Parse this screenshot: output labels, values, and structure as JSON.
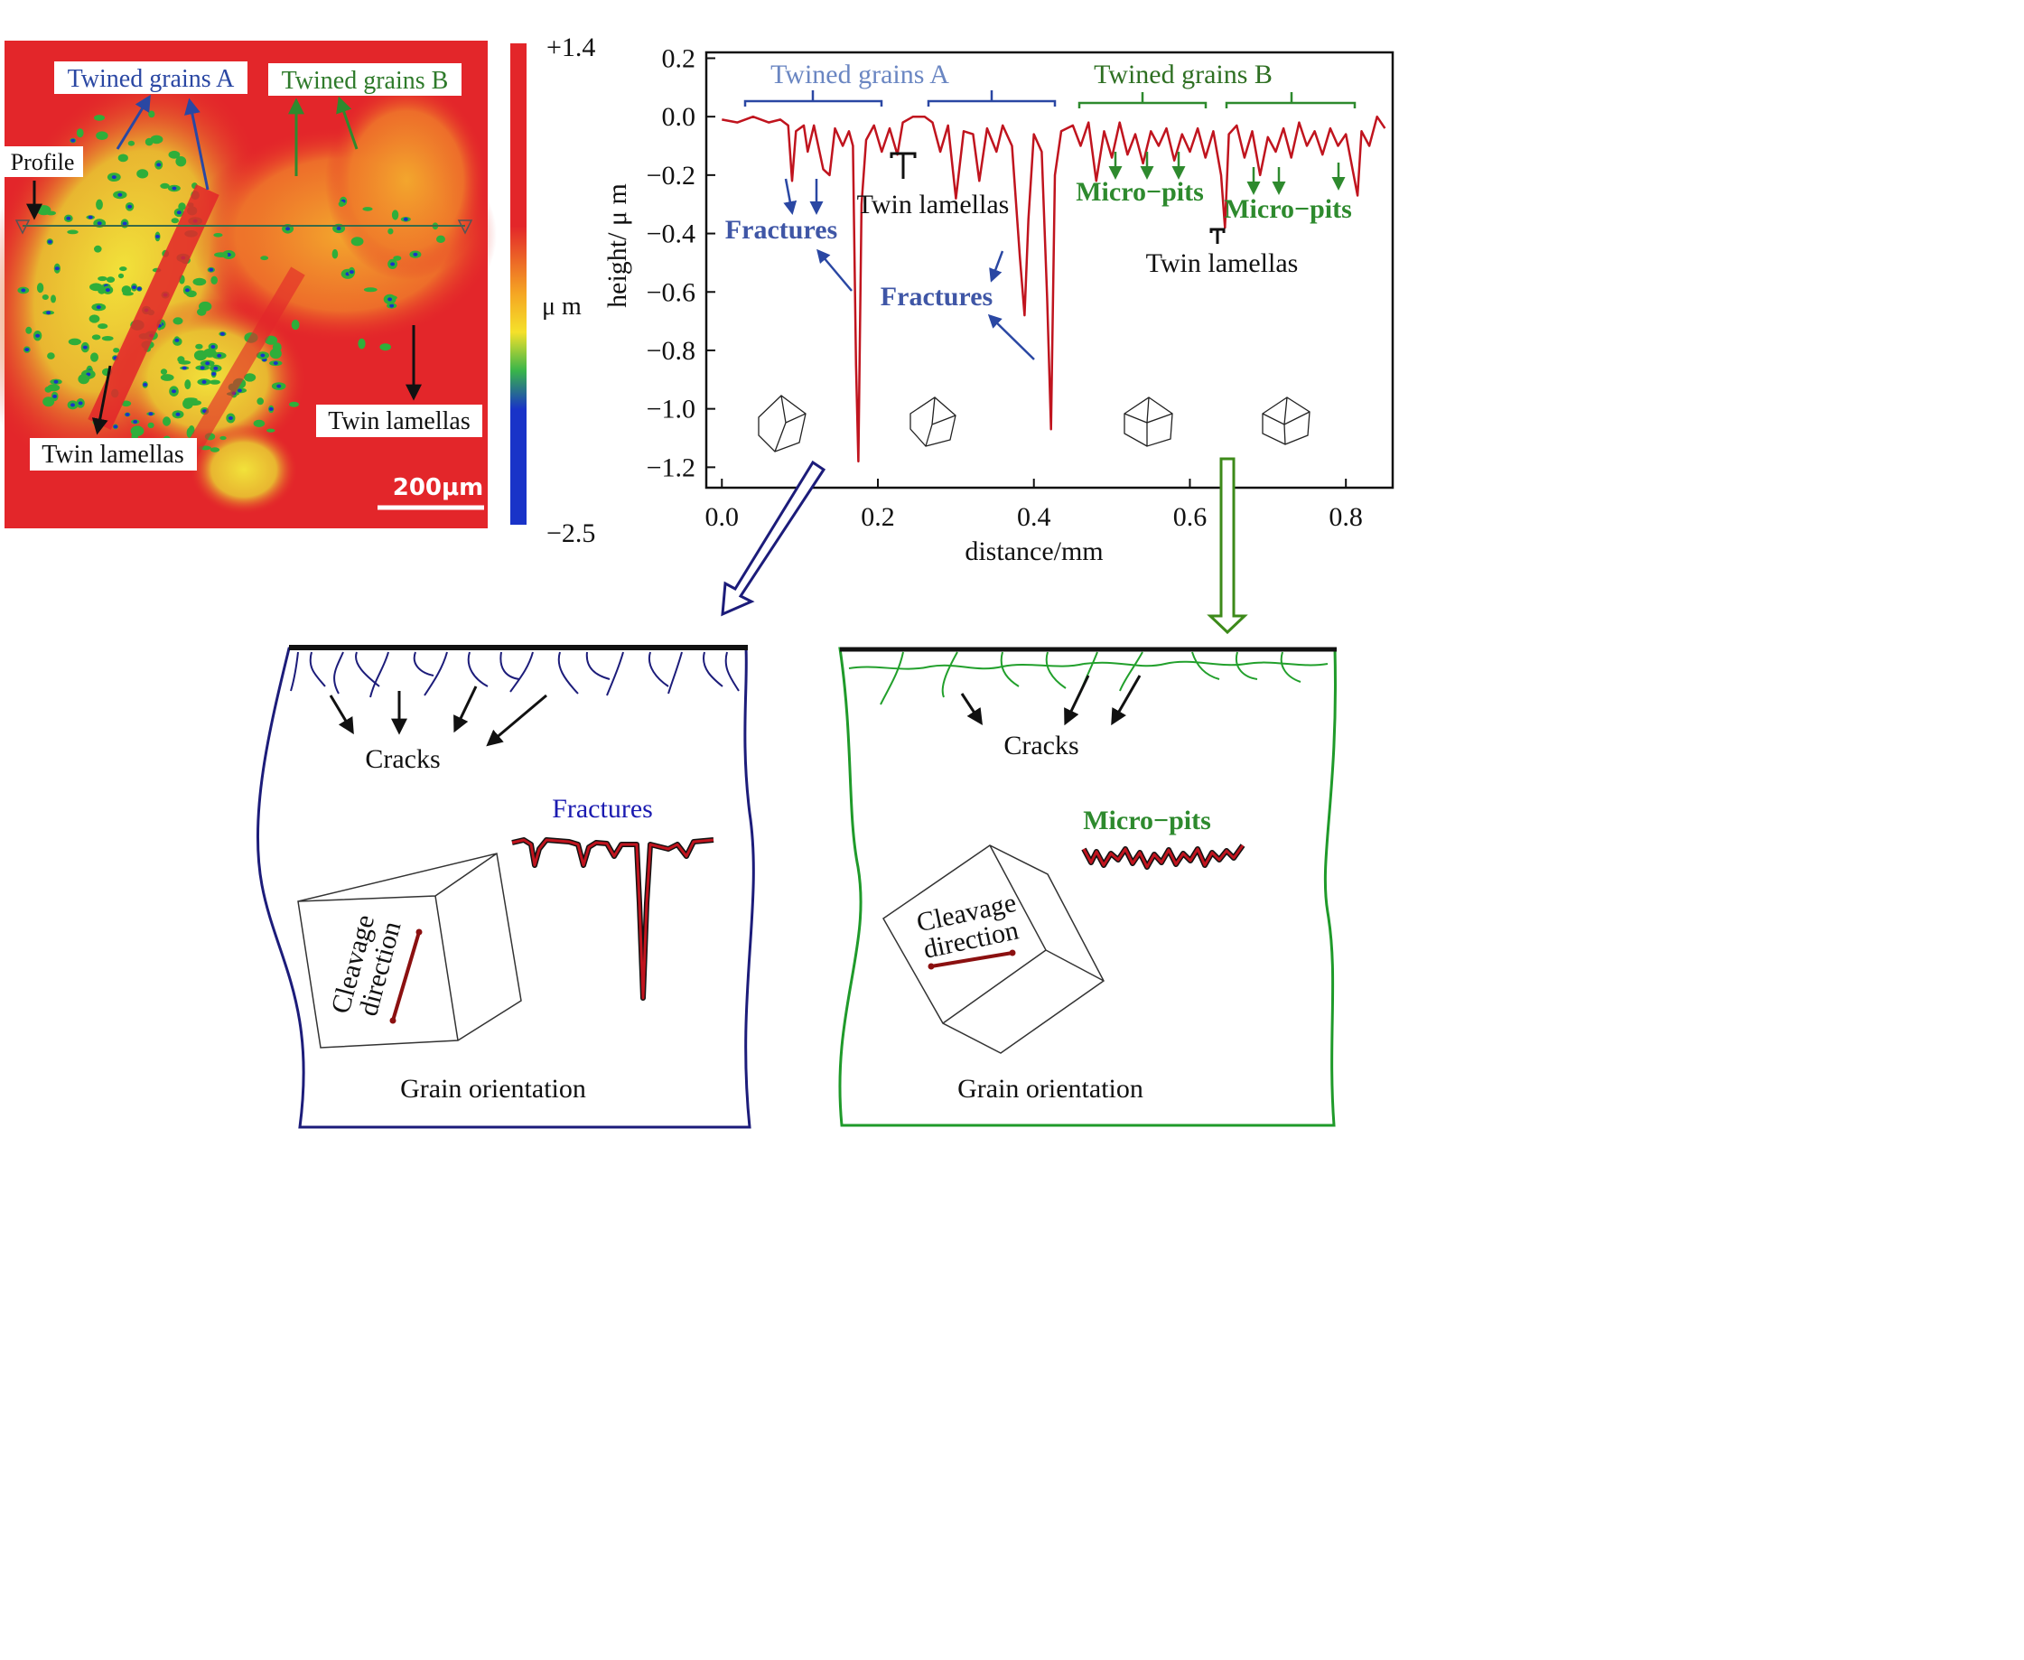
{
  "height_map": {
    "scale_top": "+1.4",
    "scale_bottom": "−2.5",
    "scale_unit": "μ m",
    "scale_bar": "200μm",
    "labels": {
      "twined_a": "Twined grains A",
      "twined_b": "Twined grains B",
      "profile": "Profile",
      "twin_left": "Twin lamellas",
      "twin_right": "Twin lamellas"
    },
    "colors": {
      "high": "#e3262a",
      "mid": "#f5d12a",
      "low": "#1933c8"
    }
  },
  "chart_data": {
    "type": "line",
    "xlabel": "distance/mm",
    "ylabel": "height/ μ m",
    "xlim": [
      -0.02,
      0.86
    ],
    "ylim": [
      -1.27,
      0.22
    ],
    "xticks": [
      "0.0",
      "0.2",
      "0.4",
      "0.6",
      "0.8"
    ],
    "xtick_values": [
      0.0,
      0.2,
      0.4,
      0.6,
      0.8
    ],
    "yticks": [
      "0.2",
      "0.0",
      "−0.2",
      "−0.4",
      "−0.6",
      "−0.8",
      "−1.0",
      "−1.2"
    ],
    "ytick_values": [
      0.2,
      0.0,
      -0.2,
      -0.4,
      -0.6,
      -0.8,
      -1.0,
      -1.2
    ],
    "line_color": "#c0141e",
    "profile": [
      [
        0.0,
        -0.01
      ],
      [
        0.02,
        -0.02
      ],
      [
        0.04,
        0.0
      ],
      [
        0.06,
        -0.02
      ],
      [
        0.075,
        -0.01
      ],
      [
        0.085,
        -0.03
      ],
      [
        0.09,
        -0.22
      ],
      [
        0.095,
        -0.05
      ],
      [
        0.105,
        -0.03
      ],
      [
        0.11,
        -0.12
      ],
      [
        0.118,
        -0.03
      ],
      [
        0.13,
        -0.18
      ],
      [
        0.138,
        -0.2
      ],
      [
        0.145,
        -0.04
      ],
      [
        0.155,
        -0.1
      ],
      [
        0.163,
        -0.05
      ],
      [
        0.168,
        -0.1
      ],
      [
        0.172,
        -0.85
      ],
      [
        0.175,
        -1.18
      ],
      [
        0.179,
        -0.3
      ],
      [
        0.185,
        -0.08
      ],
      [
        0.195,
        -0.03
      ],
      [
        0.205,
        -0.12
      ],
      [
        0.215,
        -0.04
      ],
      [
        0.225,
        -0.13
      ],
      [
        0.232,
        -0.02
      ],
      [
        0.245,
        0.0
      ],
      [
        0.26,
        0.0
      ],
      [
        0.27,
        -0.02
      ],
      [
        0.28,
        -0.12
      ],
      [
        0.29,
        -0.03
      ],
      [
        0.3,
        -0.28
      ],
      [
        0.31,
        -0.05
      ],
      [
        0.322,
        -0.06
      ],
      [
        0.33,
        -0.22
      ],
      [
        0.34,
        -0.04
      ],
      [
        0.352,
        -0.12
      ],
      [
        0.36,
        -0.03
      ],
      [
        0.372,
        -0.1
      ],
      [
        0.382,
        -0.48
      ],
      [
        0.388,
        -0.68
      ],
      [
        0.393,
        -0.35
      ],
      [
        0.4,
        -0.06
      ],
      [
        0.41,
        -0.12
      ],
      [
        0.417,
        -0.62
      ],
      [
        0.422,
        -1.07
      ],
      [
        0.427,
        -0.2
      ],
      [
        0.435,
        -0.05
      ],
      [
        0.45,
        -0.03
      ],
      [
        0.46,
        -0.1
      ],
      [
        0.47,
        -0.02
      ],
      [
        0.48,
        -0.22
      ],
      [
        0.49,
        -0.05
      ],
      [
        0.5,
        -0.14
      ],
      [
        0.51,
        -0.02
      ],
      [
        0.52,
        -0.13
      ],
      [
        0.53,
        -0.06
      ],
      [
        0.54,
        -0.16
      ],
      [
        0.55,
        -0.05
      ],
      [
        0.56,
        -0.1
      ],
      [
        0.57,
        -0.04
      ],
      [
        0.58,
        -0.15
      ],
      [
        0.59,
        -0.06
      ],
      [
        0.6,
        -0.12
      ],
      [
        0.61,
        -0.04
      ],
      [
        0.62,
        -0.14
      ],
      [
        0.63,
        -0.05
      ],
      [
        0.64,
        -0.2
      ],
      [
        0.645,
        -0.38
      ],
      [
        0.65,
        -0.06
      ],
      [
        0.66,
        -0.03
      ],
      [
        0.67,
        -0.14
      ],
      [
        0.68,
        -0.05
      ],
      [
        0.69,
        -0.2
      ],
      [
        0.7,
        -0.07
      ],
      [
        0.71,
        -0.12
      ],
      [
        0.72,
        -0.04
      ],
      [
        0.73,
        -0.14
      ],
      [
        0.74,
        -0.02
      ],
      [
        0.75,
        -0.1
      ],
      [
        0.76,
        -0.05
      ],
      [
        0.77,
        -0.13
      ],
      [
        0.78,
        -0.04
      ],
      [
        0.79,
        -0.1
      ],
      [
        0.8,
        -0.06
      ],
      [
        0.81,
        -0.2
      ],
      [
        0.815,
        -0.27
      ],
      [
        0.82,
        -0.05
      ],
      [
        0.83,
        -0.1
      ],
      [
        0.84,
        0.0
      ],
      [
        0.85,
        -0.04
      ]
    ],
    "annotations": {
      "twined_a": "Twined grains A",
      "twined_b": "Twined grains B",
      "fractures_1": "Fractures",
      "fractures_2": "Fractures",
      "twin_1": "Twin lamellas",
      "twin_2": "Twin lamellas",
      "micropits_1": "Micro−pits",
      "micropits_2": "Micro−pits"
    },
    "annotation_colors": {
      "a": "#3f56a6",
      "b": "#2e7a2a",
      "fracture": "#3f56a6",
      "pits": "#2e8a2e"
    }
  },
  "panel_left": {
    "cracks": "Cracks",
    "inset_label": "Fractures",
    "cube_label_1": "Cleavage",
    "cube_label_2": "direction",
    "caption": "Grain orientation",
    "frame_color": "#1c1c7a"
  },
  "panel_right": {
    "cracks": "Cracks",
    "inset_label": "Micro−pits",
    "cube_label_1": "Cleavage",
    "cube_label_2": "direction",
    "caption": "Grain orientation",
    "frame_color": "#1f9a2a"
  }
}
